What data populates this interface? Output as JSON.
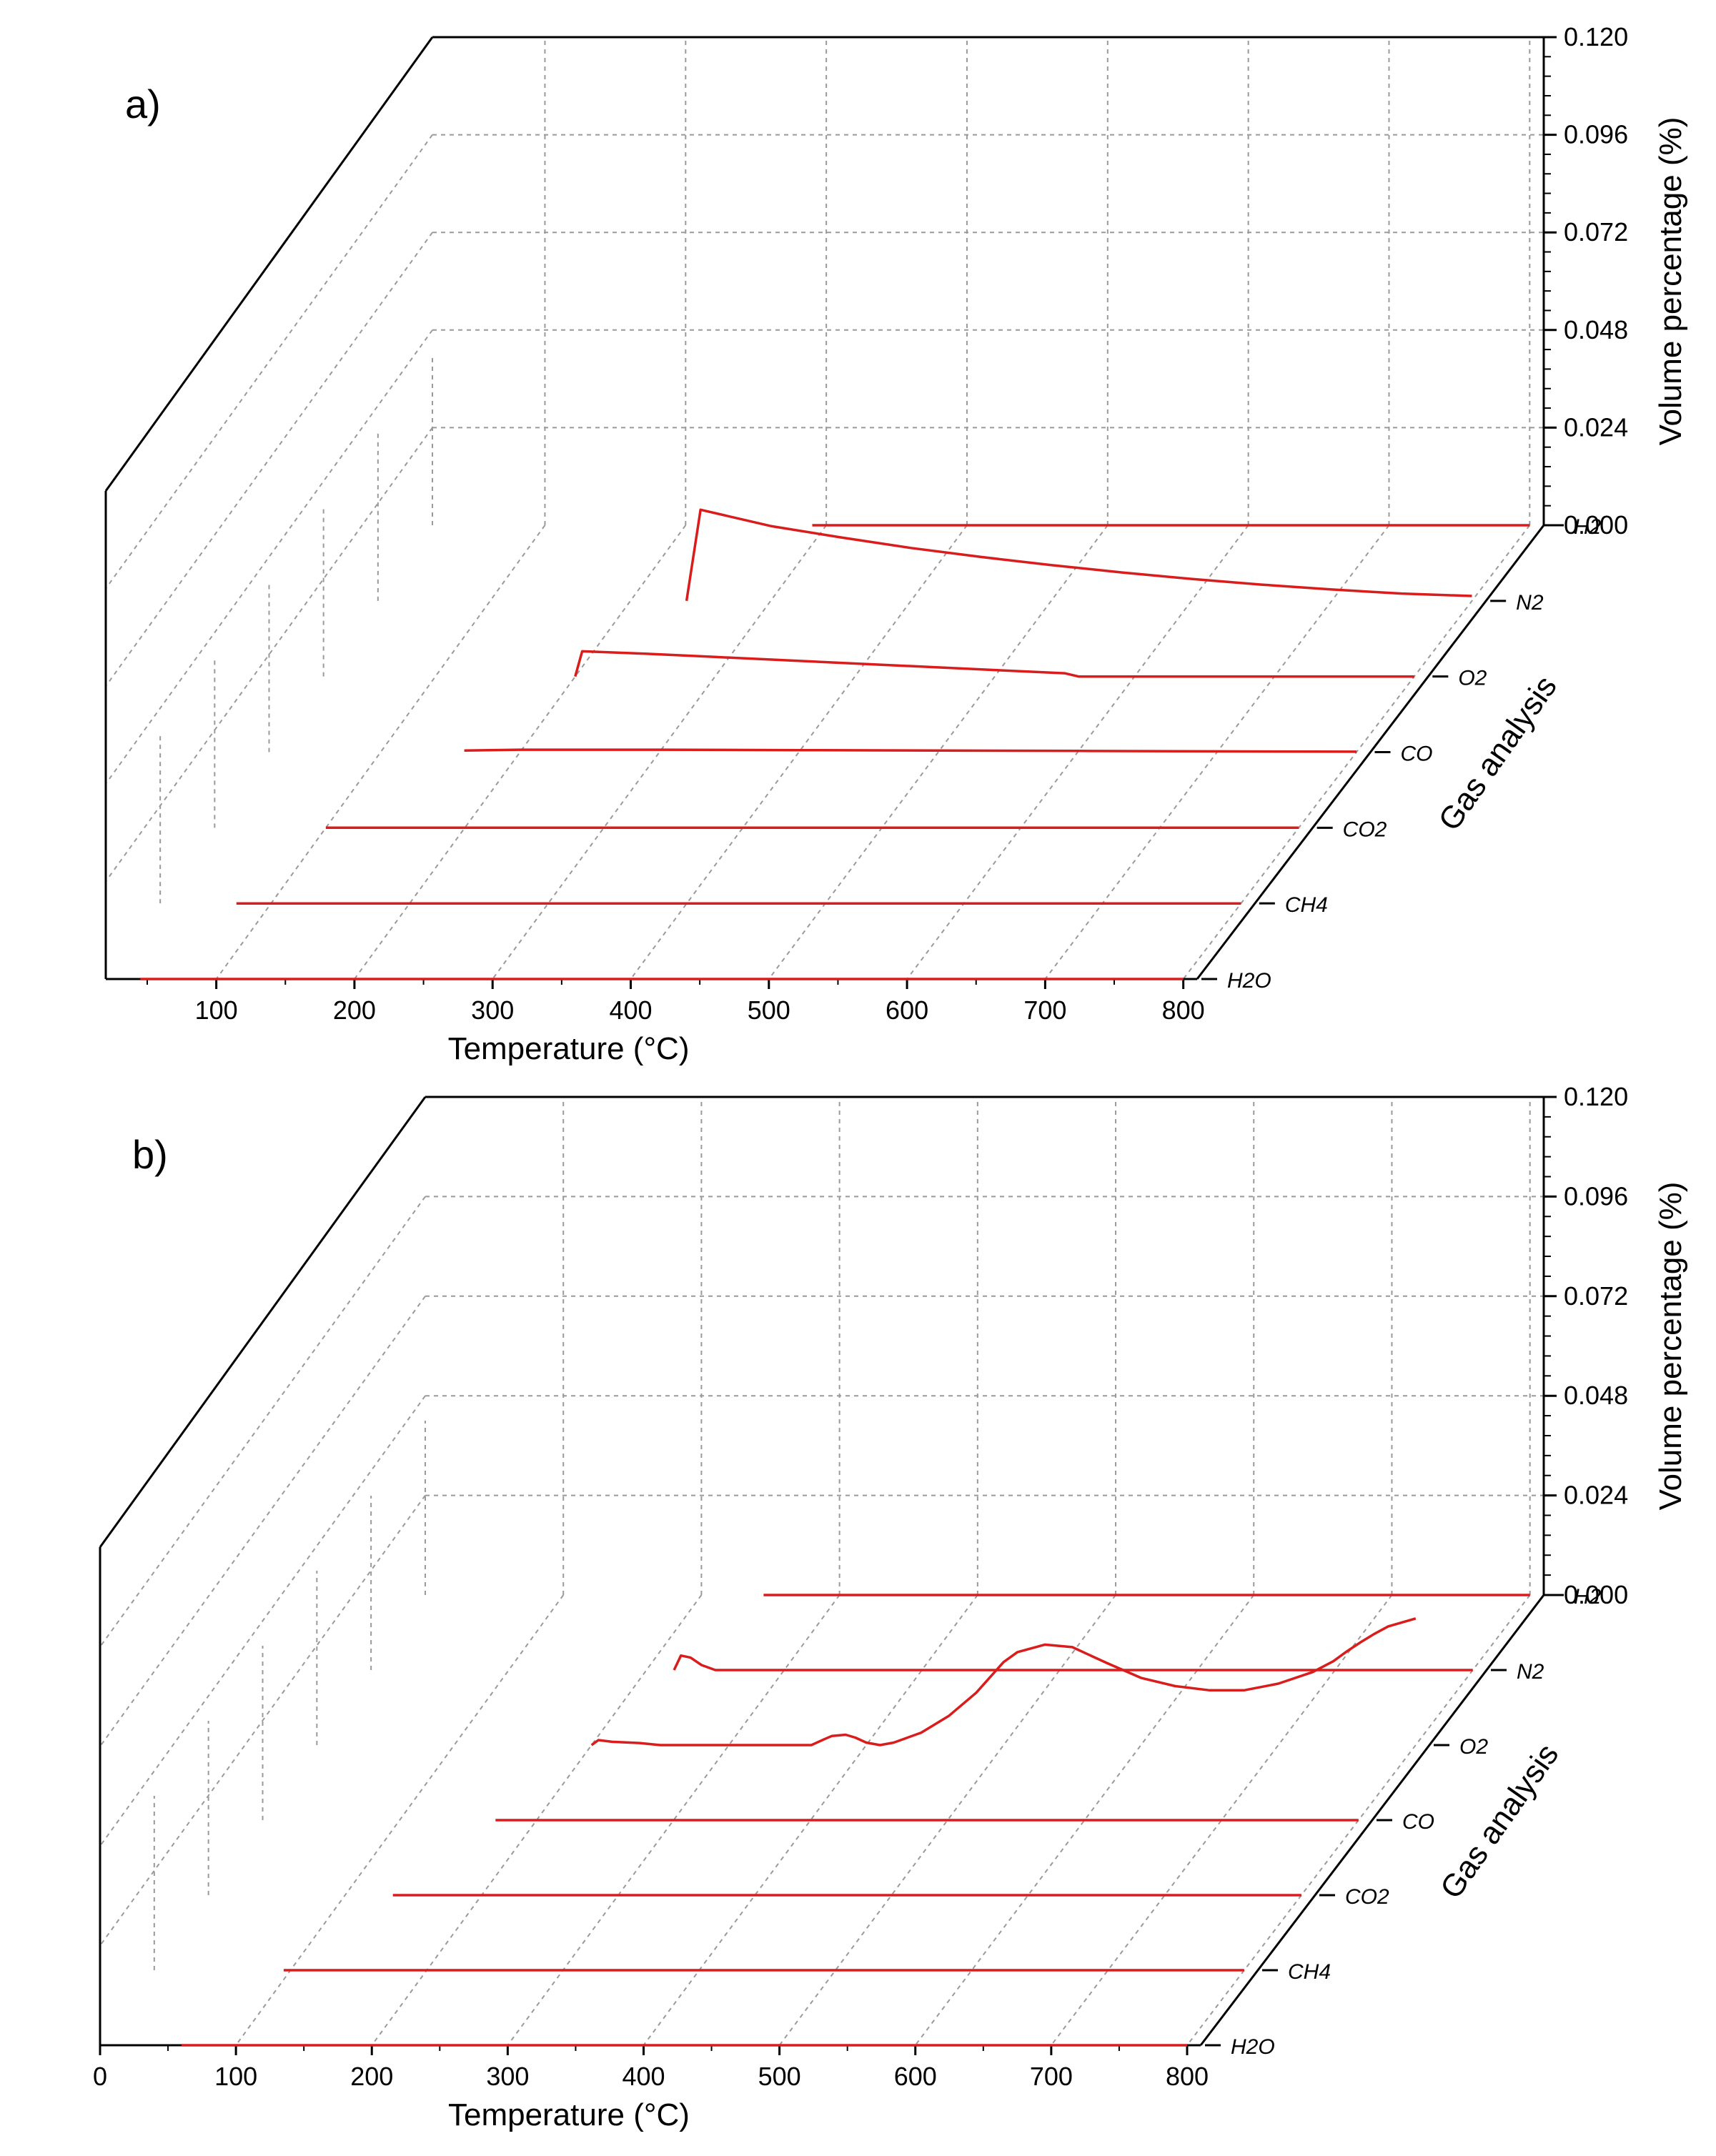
{
  "chart_data": [
    {
      "type": "line",
      "panel_label": "a)",
      "xlabel": "Temperature (°C)",
      "ylabel": "Gas analysis",
      "zlabel": "Volume percentage (%)",
      "x_ticks": [
        100,
        200,
        300,
        400,
        500,
        600,
        700,
        800
      ],
      "xlim": [
        20,
        810
      ],
      "z_ticks": [
        "0.000",
        "0.024",
        "0.048",
        "0.072",
        "0.096",
        "0.120"
      ],
      "zlim": [
        0,
        0.12
      ],
      "grid": true,
      "gases": [
        "H2",
        "N2",
        "O2",
        "CO",
        "CO2",
        "CH4",
        "H2O"
      ],
      "series": [
        {
          "name": "H2",
          "x": [
            290,
            800
          ],
          "values": [
            0,
            0
          ]
        },
        {
          "name": "N2",
          "x": [
            240,
            250,
            300,
            350,
            400,
            450,
            500,
            550,
            600,
            650,
            700,
            750,
            800
          ],
          "values": [
            0.0,
            0.0224,
            0.0184,
            0.0156,
            0.013,
            0.0108,
            0.0088,
            0.007,
            0.0054,
            0.004,
            0.0028,
            0.0018,
            0.0012
          ]
        },
        {
          "name": "O2",
          "x": [
            200,
            205,
            250,
            300,
            350,
            400,
            450,
            500,
            550,
            560,
            800
          ],
          "values": [
            0.0,
            0.0062,
            0.0056,
            0.0048,
            0.004,
            0.0032,
            0.0024,
            0.0016,
            0.0008,
            0.0,
            0.0
          ]
        },
        {
          "name": "CO",
          "x": [
            160,
            200,
            300,
            400,
            500,
            600,
            700,
            800
          ],
          "values": [
            0.0004,
            0.0006,
            0.0006,
            0.0005,
            0.0004,
            0.0003,
            0.0002,
            0.0001
          ]
        },
        {
          "name": "CO2",
          "x": [
            100,
            800
          ],
          "values": [
            0,
            0
          ]
        },
        {
          "name": "CH4",
          "x": [
            75,
            800
          ],
          "values": [
            0,
            0
          ]
        },
        {
          "name": "H2O",
          "x": [
            45,
            800
          ],
          "values": [
            0,
            0
          ]
        }
      ]
    },
    {
      "type": "line",
      "panel_label": "b)",
      "xlabel": "Temperature (°C)",
      "ylabel": "Gas analysis",
      "zlabel": "Volume percentage (%)",
      "x_ticks": [
        0,
        100,
        200,
        300,
        400,
        500,
        600,
        700,
        800
      ],
      "xlim": [
        0,
        810
      ],
      "z_ticks": [
        "0.000",
        "0.024",
        "0.048",
        "0.072",
        "0.096",
        "0.120"
      ],
      "zlim": [
        0,
        0.12
      ],
      "grid": true,
      "gases": [
        "H2",
        "N2",
        "O2",
        "CO",
        "CO2",
        "CH4",
        "H2O"
      ],
      "series": [
        {
          "name": "H2",
          "x": [
            245,
            800
          ],
          "values": [
            0,
            0
          ]
        },
        {
          "name": "N2",
          "x": [
            220,
            225,
            232,
            240,
            250,
            800
          ],
          "values": [
            0.0,
            0.0035,
            0.003,
            0.0012,
            0.0,
            0.0
          ]
        },
        {
          "name": "O2",
          "x": [
            200,
            205,
            215,
            235,
            250,
            360,
            370,
            375,
            385,
            392,
            400,
            410,
            420,
            440,
            460,
            480,
            500,
            510,
            530,
            550,
            575,
            600,
            625,
            650,
            675,
            700,
            725,
            740,
            750,
            760,
            770,
            780,
            800
          ],
          "values": [
            0.0,
            0.0012,
            0.0008,
            0.0005,
            0.0,
            0.0,
            0.0015,
            0.0022,
            0.0025,
            0.0018,
            0.0006,
            0.0,
            0.0006,
            0.003,
            0.007,
            0.0126,
            0.02,
            0.0224,
            0.0242,
            0.0236,
            0.0198,
            0.0162,
            0.0142,
            0.0132,
            0.0132,
            0.0148,
            0.0176,
            0.0202,
            0.0226,
            0.0248,
            0.0268,
            0.0286,
            0.0305
          ]
        },
        {
          "name": "CO",
          "x": [
            170,
            800
          ],
          "values": [
            0,
            0
          ]
        },
        {
          "name": "CO2",
          "x": [
            135,
            800
          ],
          "values": [
            0,
            0
          ]
        },
        {
          "name": "CH4",
          "x": [
            95,
            800
          ],
          "values": [
            0,
            0
          ]
        },
        {
          "name": "H2O",
          "x": [
            60,
            800
          ],
          "values": [
            0,
            0
          ]
        }
      ]
    }
  ]
}
